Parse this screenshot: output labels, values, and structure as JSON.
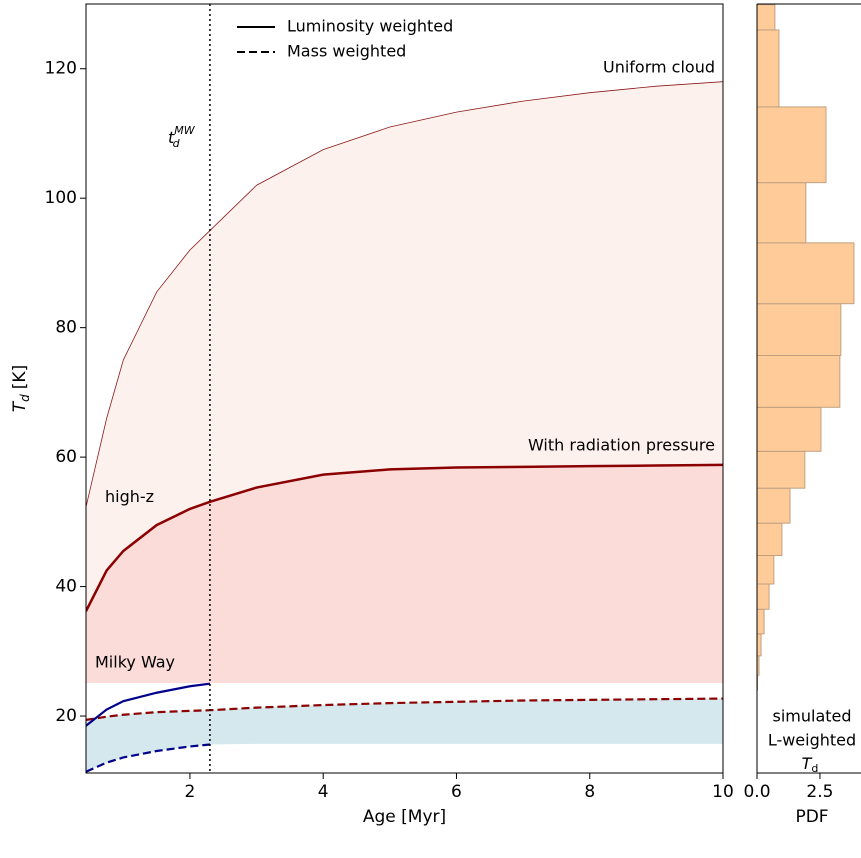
{
  "chart_data": [
    {
      "type": "line",
      "xlabel": "Age [Myr]",
      "ylabel": {
        "symbol": "T",
        "subscript": "d",
        "unit": "[K]"
      },
      "xlim": [
        0.44,
        10
      ],
      "ylim": [
        11.2,
        130
      ],
      "xticks": [
        2,
        4,
        6,
        8,
        10
      ],
      "yticks": [
        20,
        40,
        60,
        80,
        100,
        120
      ],
      "grid": false,
      "x": [
        0.44,
        0.75,
        1,
        1.5,
        2,
        2.3,
        3,
        4,
        5,
        6,
        7,
        8,
        9,
        10
      ],
      "series": [
        {
          "name": "Uniform cloud",
          "color": "#8b1a1a",
          "width": 0.8,
          "dash": "solid",
          "values": [
            52.3,
            66,
            75,
            85.5,
            92,
            95,
            102,
            107.5,
            111,
            113.3,
            115,
            116.3,
            117.3,
            118
          ]
        },
        {
          "name": "With radiation pressure",
          "color": "#8b0000",
          "width": 2.5,
          "dash": "solid",
          "values": [
            36.2,
            42.5,
            45.5,
            49.5,
            52,
            53.1,
            55.3,
            57.3,
            58.1,
            58.4,
            58.5,
            58.6,
            58.7,
            58.8
          ]
        },
        {
          "color": "#8b0000",
          "width": 2.2,
          "dash": "dashed",
          "values": [
            19.4,
            19.9,
            20.2,
            20.6,
            20.8,
            20.9,
            21.3,
            21.7,
            22,
            22.2,
            22.4,
            22.5,
            22.6,
            22.7
          ]
        },
        {
          "name": "Milky Way",
          "color": "#00008b",
          "width": 2.2,
          "dash": "solid",
          "values": [
            18.5,
            21,
            22.3,
            23.6,
            24.6,
            25,
            null,
            null,
            null,
            null,
            null,
            null,
            null,
            null
          ]
        },
        {
          "color": "#00008b",
          "width": 2.2,
          "dash": "dashed",
          "values": [
            11.4,
            12.8,
            13.6,
            14.6,
            15.3,
            15.6,
            null,
            null,
            null,
            null,
            null,
            null,
            null,
            null
          ]
        }
      ],
      "bands": [
        {
          "color": "#fdf1ee",
          "upper": [
            52.3,
            66,
            75,
            85.5,
            92,
            95,
            102,
            107.5,
            111,
            113.3,
            115,
            116.3,
            117.3,
            118
          ],
          "lower": [
            25.1,
            25.1,
            25.1,
            25.1,
            25.1,
            25.1,
            25.1,
            25.1,
            25.1,
            25.1,
            25.1,
            25.1,
            25.1,
            25.1
          ]
        },
        {
          "color": "#fcdcd8",
          "upper": [
            36.2,
            42.5,
            45.5,
            49.5,
            52,
            53.1,
            55.3,
            57.3,
            58.1,
            58.4,
            58.5,
            58.6,
            58.7,
            58.8
          ],
          "lower": [
            25.1,
            25.1,
            25.1,
            25.1,
            25.1,
            25.1,
            25.1,
            25.1,
            25.1,
            25.1,
            25.1,
            25.1,
            25.1,
            25.1
          ]
        },
        {
          "color": "#d4e8ee",
          "upper": [
            19.4,
            19.9,
            20.2,
            20.6,
            20.8,
            20.9,
            21.3,
            21.7,
            22,
            22.2,
            22.4,
            22.5,
            22.6,
            22.7
          ],
          "lower": [
            11.4,
            12.8,
            13.6,
            14.6,
            15.3,
            15.6,
            15.7,
            15.7,
            15.7,
            15.7,
            15.7,
            15.7,
            15.7,
            15.7
          ]
        }
      ],
      "vline": 2.3,
      "annotations": [
        {
          "text": "high-z",
          "color": "#8b0000"
        },
        {
          "text": "t",
          "subscript": "d",
          "superscript": "MW",
          "color": "#000000"
        }
      ],
      "legend": {
        "loc": "upper center",
        "entries": [
          {
            "label": "Luminosity weighted",
            "dash": "solid"
          },
          {
            "label": "Mass weighted",
            "dash": "dashed"
          }
        ]
      }
    },
    {
      "type": "histogram",
      "orientation": "horizontal",
      "xlabel": "PDF",
      "xlim": [
        0,
        4.13
      ],
      "xticks": [
        {
          "value": 0,
          "label": "0.0"
        },
        {
          "value": 2.5,
          "label": "2.5"
        }
      ],
      "ylim": [
        11.2,
        130
      ],
      "bins": [
        24.0,
        26.3,
        29.3,
        32.7,
        36.5,
        40.4,
        44.8,
        49.8,
        55.2,
        60.9,
        67.7,
        75.7,
        83.7,
        93.1,
        102.4,
        114.1,
        126.0,
        129.9
      ],
      "counts": [
        0.02,
        0.08,
        0.16,
        0.28,
        0.48,
        0.67,
        0.99,
        1.31,
        1.9,
        2.54,
        3.29,
        3.33,
        3.85,
        1.94,
        2.74,
        0.87,
        0.71
      ],
      "color": "#ffcc99",
      "edgecolor": "#c0a080",
      "annotation": {
        "lines": [
          "simulated",
          "L-weighted"
        ],
        "symbol": "T",
        "subscript": "d"
      }
    }
  ]
}
